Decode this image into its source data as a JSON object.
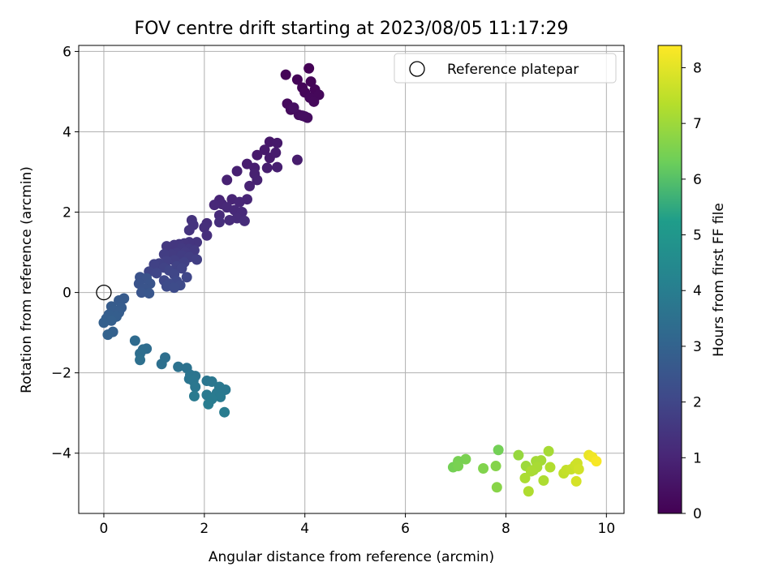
{
  "chart_data": {
    "type": "scatter",
    "title": "FOV centre drift starting at 2023/08/05 11:17:29",
    "xlabel": "Angular distance from reference (arcmin)",
    "ylabel": "Rotation from reference (arcmin)",
    "xlim": [
      -0.5,
      10.35
    ],
    "ylim": [
      -5.5,
      6.15
    ],
    "xticks": [
      0,
      2,
      4,
      6,
      8,
      10
    ],
    "xtick_labels": [
      "0",
      "2",
      "4",
      "6",
      "8",
      "10"
    ],
    "yticks": [
      -4,
      -2,
      0,
      2,
      4,
      6
    ],
    "ytick_labels": [
      "−4",
      "−2",
      "0",
      "2",
      "4",
      "6"
    ],
    "grid": true,
    "legend": {
      "position": "top-right",
      "entries": [
        "Reference platepar"
      ]
    },
    "reference_point": {
      "x": 0,
      "y": 0,
      "label": "Reference platepar"
    },
    "colorbar": {
      "label": "Hours from first FF file",
      "range": [
        0,
        8.4
      ],
      "ticks": [
        0,
        1,
        2,
        3,
        4,
        5,
        6,
        7,
        8
      ],
      "tick_labels": [
        "0",
        "1",
        "2",
        "3",
        "4",
        "5",
        "6",
        "7",
        "8"
      ],
      "colormap": "viridis",
      "colors": [
        "#440154",
        "#482777",
        "#3f4a8a",
        "#31678e",
        "#26838f",
        "#1f9d8a",
        "#6cce5a",
        "#b6de2b",
        "#fee825"
      ]
    },
    "points": [
      [
        4.08,
        5.58,
        0.02
      ],
      [
        3.62,
        5.42,
        0.05
      ],
      [
        3.85,
        5.3,
        0.08
      ],
      [
        4.12,
        5.25,
        0.1
      ],
      [
        3.95,
        5.1,
        0.12
      ],
      [
        4.2,
        5.05,
        0.14
      ],
      [
        4.0,
        4.98,
        0.16
      ],
      [
        4.28,
        4.92,
        0.18
      ],
      [
        4.1,
        4.85,
        0.2
      ],
      [
        4.18,
        4.75,
        0.22
      ],
      [
        3.65,
        4.7,
        0.24
      ],
      [
        3.72,
        4.55,
        0.27
      ],
      [
        3.88,
        4.42,
        0.3
      ],
      [
        4.0,
        4.38,
        0.32
      ],
      [
        4.05,
        4.35,
        0.34
      ],
      [
        3.95,
        4.4,
        0.36
      ],
      [
        3.78,
        4.6,
        0.38
      ],
      [
        3.3,
        3.75,
        0.62
      ],
      [
        3.45,
        3.72,
        0.65
      ],
      [
        3.2,
        3.55,
        0.68
      ],
      [
        3.05,
        3.42,
        0.7
      ],
      [
        3.3,
        3.35,
        0.72
      ],
      [
        3.42,
        3.48,
        0.74
      ],
      [
        3.85,
        3.3,
        0.76
      ],
      [
        2.85,
        3.2,
        0.78
      ],
      [
        3.0,
        3.1,
        0.8
      ],
      [
        3.25,
        3.1,
        0.82
      ],
      [
        3.45,
        3.12,
        0.84
      ],
      [
        2.65,
        3.02,
        0.86
      ],
      [
        3.0,
        2.95,
        0.88
      ],
      [
        3.05,
        2.8,
        0.9
      ],
      [
        2.45,
        2.8,
        0.92
      ],
      [
        2.9,
        2.65,
        0.94
      ],
      [
        2.3,
        2.3,
        0.98
      ],
      [
        2.55,
        2.32,
        1.0
      ],
      [
        2.85,
        2.32,
        1.02
      ],
      [
        2.7,
        2.25,
        1.04
      ],
      [
        2.35,
        2.2,
        1.06
      ],
      [
        2.2,
        2.18,
        1.08
      ],
      [
        2.45,
        2.12,
        1.1
      ],
      [
        2.6,
        2.05,
        1.12
      ],
      [
        2.75,
        2.0,
        1.14
      ],
      [
        2.3,
        1.92,
        1.16
      ],
      [
        2.65,
        1.85,
        1.18
      ],
      [
        2.5,
        1.8,
        1.2
      ],
      [
        2.8,
        1.78,
        1.22
      ],
      [
        2.05,
        1.72,
        1.24
      ],
      [
        2.3,
        1.75,
        1.26
      ],
      [
        2.0,
        1.62,
        1.28
      ],
      [
        2.05,
        1.42,
        1.3
      ],
      [
        1.75,
        1.8,
        1.4
      ],
      [
        1.78,
        1.68,
        1.42
      ],
      [
        1.7,
        1.55,
        1.44
      ],
      [
        1.85,
        1.25,
        1.46
      ],
      [
        1.7,
        1.25,
        1.48
      ],
      [
        1.6,
        1.22,
        1.5
      ],
      [
        1.5,
        1.2,
        1.52
      ],
      [
        1.4,
        1.18,
        1.54
      ],
      [
        1.25,
        1.15,
        1.56
      ],
      [
        1.55,
        1.1,
        1.58
      ],
      [
        1.7,
        1.08,
        1.6
      ],
      [
        1.8,
        1.05,
        1.62
      ],
      [
        1.62,
        1.0,
        1.64
      ],
      [
        1.45,
        0.98,
        1.66
      ],
      [
        1.35,
        0.95,
        1.68
      ],
      [
        1.2,
        0.95,
        1.7
      ],
      [
        1.55,
        0.92,
        1.72
      ],
      [
        1.7,
        0.88,
        1.74
      ],
      [
        1.85,
        0.82,
        1.76
      ],
      [
        1.4,
        0.8,
        1.78
      ],
      [
        1.25,
        0.78,
        1.8
      ],
      [
        1.6,
        0.75,
        1.82
      ],
      [
        1.1,
        0.72,
        1.84
      ],
      [
        1.0,
        0.7,
        1.86
      ],
      [
        1.45,
        0.65,
        1.88
      ],
      [
        1.2,
        0.62,
        1.9
      ],
      [
        1.55,
        0.6,
        1.92
      ],
      [
        1.3,
        0.55,
        1.94
      ],
      [
        0.9,
        0.52,
        1.96
      ],
      [
        1.05,
        0.48,
        1.98
      ],
      [
        1.4,
        0.45,
        2.0
      ],
      [
        1.65,
        0.38,
        2.02
      ],
      [
        1.2,
        0.3,
        2.05
      ],
      [
        1.45,
        0.28,
        2.08
      ],
      [
        1.3,
        0.22,
        2.1
      ],
      [
        1.52,
        0.18,
        2.12
      ],
      [
        1.25,
        0.15,
        2.14
      ],
      [
        1.4,
        0.12,
        2.16
      ],
      [
        0.72,
        0.38,
        2.4
      ],
      [
        0.85,
        0.35,
        2.42
      ],
      [
        0.7,
        0.22,
        2.44
      ],
      [
        0.92,
        0.22,
        2.46
      ],
      [
        0.8,
        0.1,
        2.48
      ],
      [
        0.75,
        0.0,
        2.5
      ],
      [
        0.9,
        -0.02,
        2.52
      ],
      [
        0.4,
        -0.15,
        2.7
      ],
      [
        0.3,
        -0.2,
        2.72
      ],
      [
        0.15,
        -0.35,
        2.74
      ],
      [
        0.35,
        -0.38,
        2.76
      ],
      [
        0.2,
        -0.45,
        2.78
      ],
      [
        0.3,
        -0.5,
        2.8
      ],
      [
        0.1,
        -0.55,
        2.82
      ],
      [
        0.25,
        -0.6,
        2.84
      ],
      [
        0.05,
        -0.65,
        2.86
      ],
      [
        0.15,
        -0.7,
        2.88
      ],
      [
        0.0,
        -0.75,
        2.9
      ],
      [
        0.18,
        -0.98,
        2.95
      ],
      [
        0.08,
        -1.05,
        2.98
      ],
      [
        0.62,
        -1.2,
        3.3
      ],
      [
        0.85,
        -1.4,
        3.35
      ],
      [
        0.78,
        -1.42,
        3.37
      ],
      [
        0.72,
        -1.52,
        3.4
      ],
      [
        1.22,
        -1.62,
        3.45
      ],
      [
        0.72,
        -1.68,
        3.47
      ],
      [
        1.15,
        -1.78,
        3.5
      ],
      [
        1.48,
        -1.85,
        3.55
      ],
      [
        1.65,
        -1.88,
        3.58
      ],
      [
        1.72,
        -2.05,
        3.62
      ],
      [
        1.82,
        -2.08,
        3.65
      ],
      [
        1.7,
        -2.15,
        3.68
      ],
      [
        1.78,
        -2.2,
        3.7
      ],
      [
        2.05,
        -2.2,
        3.72
      ],
      [
        2.15,
        -2.22,
        3.74
      ],
      [
        1.82,
        -2.35,
        3.76
      ],
      [
        2.3,
        -2.35,
        3.78
      ],
      [
        2.42,
        -2.42,
        3.8
      ],
      [
        2.25,
        -2.5,
        3.82
      ],
      [
        2.05,
        -2.55,
        3.84
      ],
      [
        1.8,
        -2.58,
        3.86
      ],
      [
        2.32,
        -2.6,
        3.88
      ],
      [
        2.15,
        -2.65,
        3.9
      ],
      [
        2.08,
        -2.78,
        3.92
      ],
      [
        2.4,
        -2.98,
        3.95
      ],
      [
        7.85,
        -3.92,
        6.4
      ],
      [
        7.2,
        -4.15,
        6.5
      ],
      [
        7.05,
        -4.2,
        6.45
      ],
      [
        6.95,
        -4.35,
        6.42
      ],
      [
        7.05,
        -4.32,
        6.48
      ],
      [
        7.55,
        -4.38,
        6.6
      ],
      [
        7.8,
        -4.32,
        6.65
      ],
      [
        7.82,
        -4.85,
        6.7
      ],
      [
        8.25,
        -4.05,
        6.9
      ],
      [
        8.4,
        -4.32,
        7.0
      ],
      [
        8.55,
        -4.42,
        7.05
      ],
      [
        8.6,
        -4.2,
        7.08
      ],
      [
        8.7,
        -4.18,
        7.1
      ],
      [
        8.85,
        -3.95,
        7.12
      ],
      [
        8.62,
        -4.35,
        7.15
      ],
      [
        8.5,
        -4.45,
        7.18
      ],
      [
        8.38,
        -4.62,
        7.2
      ],
      [
        8.75,
        -4.68,
        7.22
      ],
      [
        8.45,
        -4.95,
        7.25
      ],
      [
        8.88,
        -4.35,
        7.28
      ],
      [
        9.15,
        -4.5,
        7.5
      ],
      [
        9.2,
        -4.42,
        7.55
      ],
      [
        9.3,
        -4.4,
        7.6
      ],
      [
        9.38,
        -4.3,
        7.65
      ],
      [
        9.42,
        -4.25,
        7.7
      ],
      [
        9.45,
        -4.4,
        7.75
      ],
      [
        9.4,
        -4.7,
        7.8
      ],
      [
        9.65,
        -4.05,
        8.1
      ],
      [
        9.72,
        -4.1,
        8.2
      ],
      [
        9.8,
        -4.2,
        8.3
      ]
    ]
  }
}
